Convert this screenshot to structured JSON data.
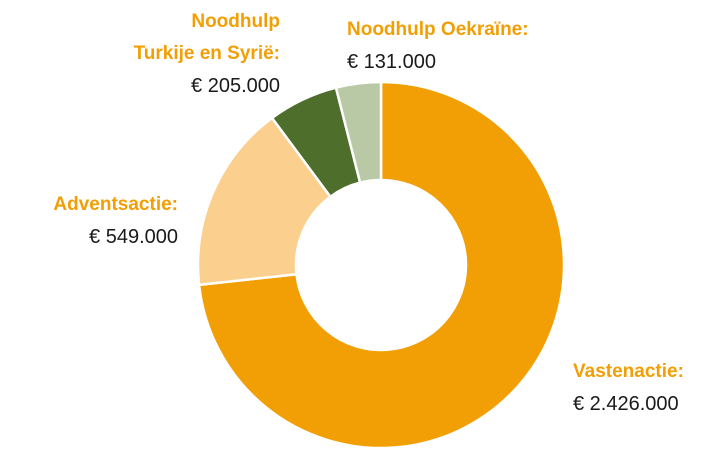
{
  "chart_data": {
    "type": "donut",
    "categories": [
      "Vastenactie:",
      "Adventsactie:",
      "Noodhulp Turkije en Syrië:",
      "Noodhulp Oekraïne:"
    ],
    "values": [
      2426000,
      549000,
      205000,
      131000
    ],
    "value_labels": [
      "€ 2.426.000",
      "€ 549.000",
      "€ 205.000",
      "€ 131.000"
    ],
    "colors": [
      "#f29f05",
      "#fbd08f",
      "#4e6e2b",
      "#b9c9a5"
    ]
  }
}
